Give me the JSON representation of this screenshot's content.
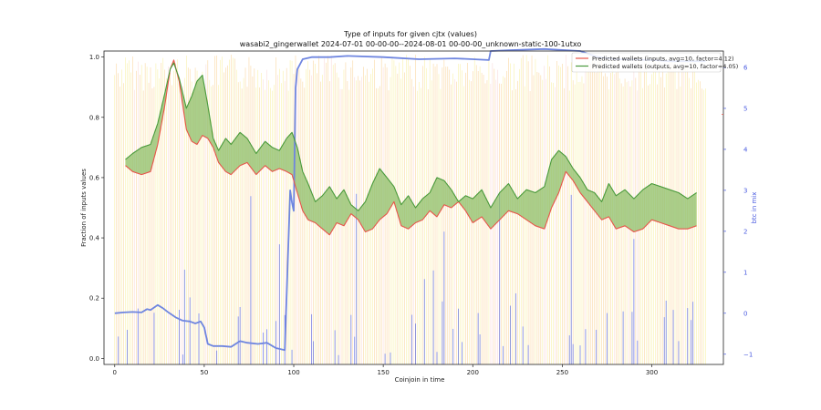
{
  "chart_data": {
    "type": "line",
    "title": "Type of inputs for given cjtx (values)",
    "subtitle": "wasabi2_gingerwallet 2024-07-01 00-00-00--2024-08-01 00-00-00_unknown-static-100-1utxo",
    "xlabel": "Coinjoin in time",
    "ylabel": "Fraction of inputs values",
    "y2label": "btc in mix",
    "xlim": [
      -6,
      340
    ],
    "ylim": [
      -0.02,
      1.02
    ],
    "y2lim": [
      -1.25,
      6.4
    ],
    "xticks": [
      "0",
      "50",
      "100",
      "150",
      "200",
      "250",
      "300"
    ],
    "yticks": [
      "0.0",
      "0.2",
      "0.4",
      "0.6",
      "0.8",
      "1.0"
    ],
    "y2ticks": [
      "−1",
      "0",
      "1",
      "2",
      "3",
      "4",
      "5",
      "6"
    ],
    "grid": false,
    "legend_position": "top-right",
    "colors": {
      "inputs": "#e8554a",
      "outputs": "#4a9a3c",
      "fill": "#8fbf6a",
      "btc": "#6f86e0",
      "background_bars_orange": "#f6b04a",
      "background_bars_yellow": "#f2e35a",
      "background_bars_pink": "#f7b9b9",
      "spikes": "#4a5be0"
    },
    "series": [
      {
        "name": "Predicted wallets (inputs, avg=10, factor=4.12)",
        "x": [
          6,
          10,
          15,
          20,
          24,
          28,
          31,
          33,
          36,
          40,
          43,
          46,
          49,
          52,
          55,
          58,
          62,
          65,
          70,
          74,
          79,
          84,
          88,
          92,
          96,
          99,
          102,
          105,
          108,
          112,
          116,
          120,
          124,
          128,
          132,
          136,
          140,
          144,
          148,
          152,
          156,
          160,
          164,
          168,
          172,
          176,
          180,
          184,
          188,
          192,
          196,
          200,
          205,
          210,
          215,
          220,
          225,
          230,
          235,
          240,
          244,
          248,
          252,
          256,
          260,
          264,
          268,
          272,
          276,
          280,
          285,
          290,
          295,
          300,
          305,
          310,
          315,
          320,
          325
        ],
        "values": [
          0.64,
          0.62,
          0.61,
          0.62,
          0.71,
          0.84,
          0.96,
          0.99,
          0.92,
          0.76,
          0.72,
          0.71,
          0.74,
          0.73,
          0.7,
          0.65,
          0.62,
          0.61,
          0.64,
          0.65,
          0.61,
          0.64,
          0.62,
          0.63,
          0.62,
          0.61,
          0.55,
          0.49,
          0.46,
          0.45,
          0.43,
          0.41,
          0.45,
          0.44,
          0.48,
          0.46,
          0.42,
          0.43,
          0.46,
          0.48,
          0.52,
          0.44,
          0.43,
          0.45,
          0.46,
          0.49,
          0.47,
          0.51,
          0.5,
          0.52,
          0.49,
          0.45,
          0.47,
          0.43,
          0.46,
          0.49,
          0.48,
          0.46,
          0.44,
          0.43,
          0.5,
          0.55,
          0.62,
          0.59,
          0.55,
          0.52,
          0.49,
          0.46,
          0.47,
          0.43,
          0.44,
          0.42,
          0.43,
          0.46,
          0.45,
          0.44,
          0.43,
          0.43,
          0.44
        ]
      },
      {
        "name": "Predicted wallets (outputs, avg=10, factor=4.05)",
        "x": [
          6,
          10,
          15,
          20,
          24,
          28,
          31,
          33,
          36,
          40,
          43,
          46,
          49,
          52,
          55,
          58,
          62,
          65,
          70,
          74,
          79,
          84,
          88,
          92,
          96,
          99,
          102,
          105,
          108,
          112,
          116,
          120,
          124,
          128,
          132,
          136,
          140,
          144,
          148,
          152,
          156,
          160,
          164,
          168,
          172,
          176,
          180,
          184,
          188,
          192,
          196,
          200,
          205,
          210,
          215,
          220,
          225,
          230,
          235,
          240,
          244,
          248,
          252,
          256,
          260,
          264,
          268,
          272,
          276,
          280,
          285,
          290,
          295,
          300,
          305,
          310,
          315,
          320,
          325
        ],
        "values": [
          0.66,
          0.68,
          0.7,
          0.71,
          0.78,
          0.88,
          0.96,
          0.98,
          0.93,
          0.83,
          0.87,
          0.92,
          0.94,
          0.84,
          0.73,
          0.69,
          0.73,
          0.71,
          0.75,
          0.73,
          0.68,
          0.72,
          0.7,
          0.69,
          0.73,
          0.75,
          0.7,
          0.62,
          0.58,
          0.52,
          0.54,
          0.57,
          0.53,
          0.56,
          0.51,
          0.49,
          0.52,
          0.58,
          0.63,
          0.6,
          0.57,
          0.51,
          0.54,
          0.5,
          0.53,
          0.55,
          0.6,
          0.59,
          0.56,
          0.52,
          0.54,
          0.53,
          0.56,
          0.5,
          0.55,
          0.58,
          0.53,
          0.56,
          0.55,
          0.57,
          0.66,
          0.69,
          0.67,
          0.63,
          0.6,
          0.56,
          0.55,
          0.52,
          0.58,
          0.54,
          0.56,
          0.53,
          0.56,
          0.58,
          0.57,
          0.56,
          0.55,
          0.53,
          0.55
        ]
      },
      {
        "name": "btc in mix",
        "axis": "right",
        "x": [
          0,
          5,
          10,
          15,
          18,
          20,
          24,
          27,
          30,
          34,
          38,
          42,
          45,
          48,
          50,
          52,
          55,
          60,
          65,
          70,
          74,
          80,
          85,
          90,
          95,
          98,
          99,
          100,
          101,
          102,
          105,
          110,
          120,
          130,
          150,
          170,
          190,
          200,
          209,
          210,
          220,
          240,
          260,
          270,
          280,
          300,
          310,
          330
        ],
        "values": [
          0.0,
          0.02,
          0.03,
          0.02,
          0.1,
          0.08,
          0.2,
          0.12,
          0.02,
          -0.1,
          -0.18,
          -0.2,
          -0.25,
          -0.2,
          -0.35,
          -0.75,
          -0.8,
          -0.8,
          -0.82,
          -0.68,
          -0.72,
          -0.75,
          -0.72,
          -0.85,
          -0.9,
          3.0,
          2.7,
          2.5,
          5.5,
          5.95,
          6.2,
          6.25,
          6.25,
          6.28,
          6.25,
          6.2,
          6.22,
          6.2,
          6.18,
          6.4,
          6.42,
          6.45,
          6.4,
          6.25,
          6.2,
          6.18,
          6.15,
          6.15
        ]
      }
    ]
  }
}
